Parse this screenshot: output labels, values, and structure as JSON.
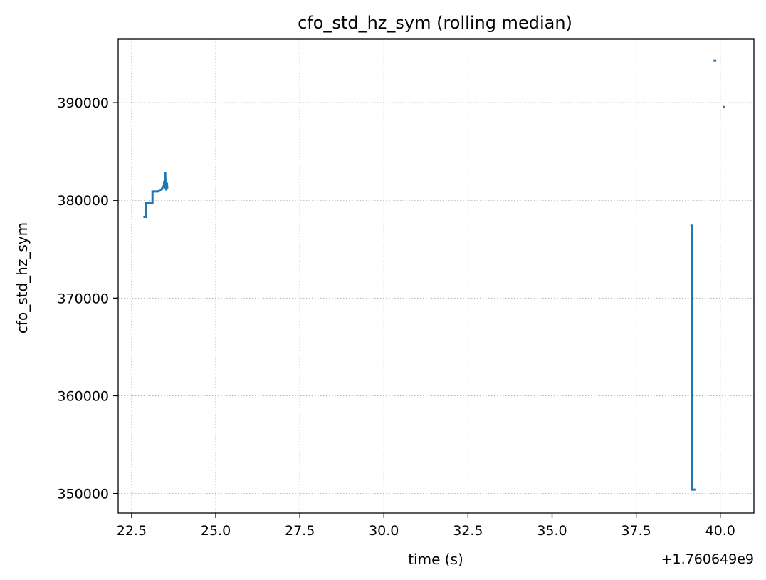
{
  "chart_data": {
    "type": "line",
    "title": "cfo_std_hz_sym (rolling median)",
    "xlabel": "time (s)",
    "ylabel": "cfo_std_hz_sym",
    "x_offset_text": "+1.760649e9",
    "xlim": [
      22.1,
      41.0
    ],
    "ylim": [
      348000,
      396500
    ],
    "xticks": [
      22.5,
      25.0,
      27.5,
      30.0,
      32.5,
      35.0,
      37.5,
      40.0
    ],
    "xtick_labels": [
      "22.5",
      "25.0",
      "27.5",
      "30.0",
      "32.5",
      "35.0",
      "37.5",
      "40.0"
    ],
    "yticks": [
      350000,
      360000,
      370000,
      380000,
      390000
    ],
    "ytick_labels": [
      "350000",
      "360000",
      "370000",
      "380000",
      "390000"
    ],
    "grid": true,
    "series": [
      {
        "color": "#1f77b4",
        "segments": [
          [
            [
              22.85,
              378300
            ],
            [
              22.92,
              378300
            ],
            [
              22.92,
              379700
            ],
            [
              23.12,
              379700
            ],
            [
              23.12,
              380900
            ],
            [
              23.28,
              380900
            ],
            [
              23.3,
              381000
            ],
            [
              23.38,
              381100
            ],
            [
              23.42,
              381300
            ],
            [
              23.46,
              381500
            ],
            [
              23.47,
              382000
            ],
            [
              23.48,
              381400
            ],
            [
              23.49,
              381900
            ],
            [
              23.5,
              382900
            ],
            [
              23.51,
              381200
            ],
            [
              23.52,
              382100
            ],
            [
              23.53,
              381000
            ],
            [
              23.55,
              381800
            ],
            [
              23.56,
              381200
            ]
          ],
          [
            [
              39.13,
              377500
            ],
            [
              39.15,
              377400
            ],
            [
              39.17,
              350400
            ],
            [
              39.26,
              350400
            ]
          ],
          [
            [
              39.8,
              394300
            ],
            [
              39.88,
              394300
            ]
          ],
          [
            [
              40.08,
              389600
            ],
            [
              40.13,
              389500
            ]
          ]
        ]
      }
    ]
  }
}
